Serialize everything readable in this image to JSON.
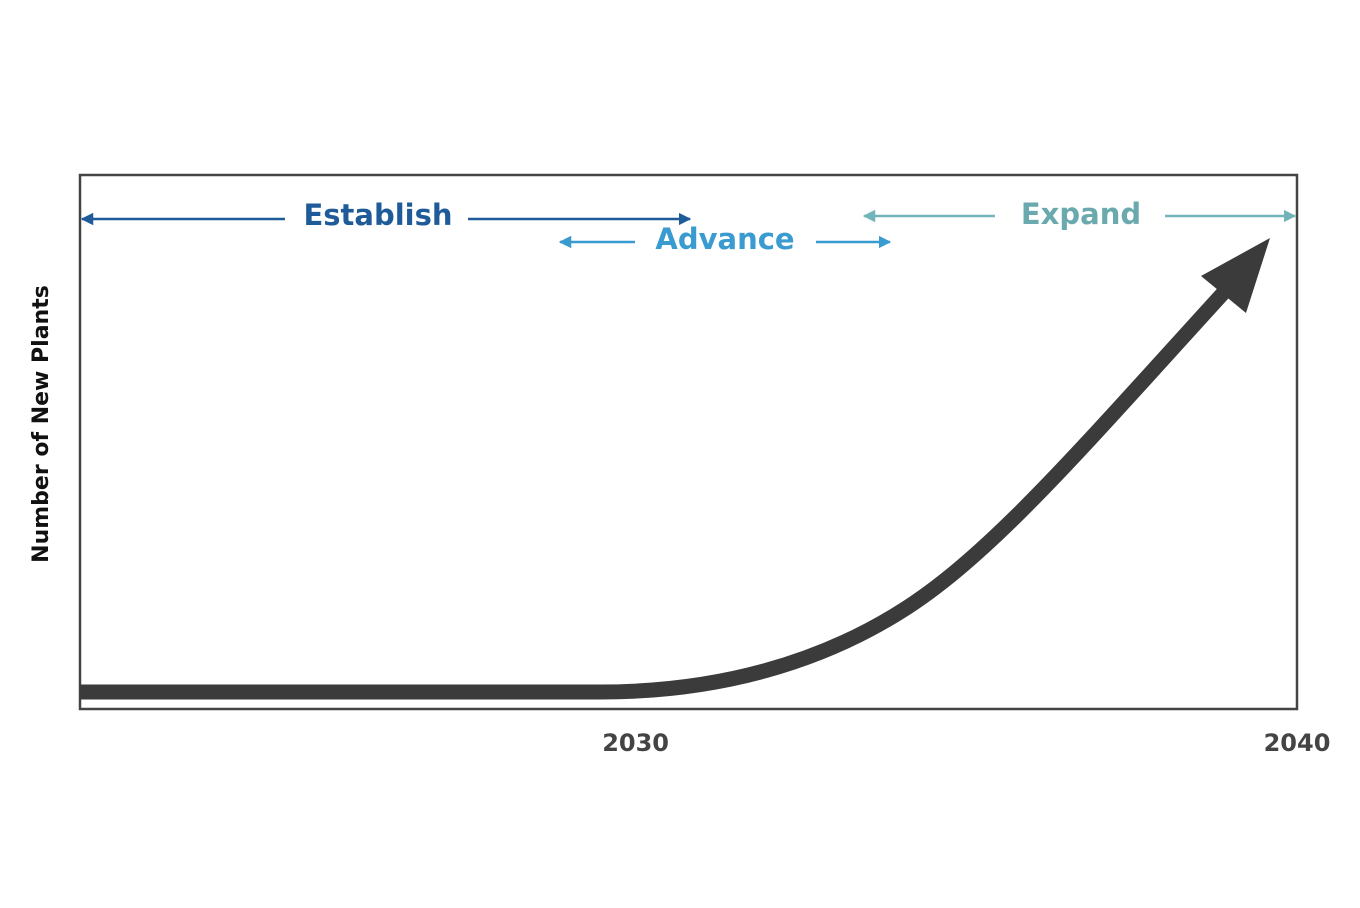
{
  "chart_data": {
    "type": "line",
    "y_label": "Number of New Plants",
    "xlim": [
      2021.6,
      2040
    ],
    "xticks": [
      2030,
      2040
    ],
    "phases": [
      "Establish",
      "Advance",
      "Expand"
    ]
  }
}
